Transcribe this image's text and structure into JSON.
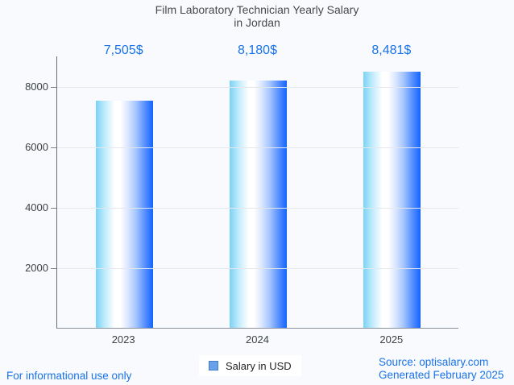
{
  "title": {
    "line1": "Film Laboratory Technician Yearly Salary",
    "line2": "in Jordan"
  },
  "chart_data": {
    "type": "bar",
    "title": "Film Laboratory Technician Yearly Salary in Jordan",
    "categories": [
      "2023",
      "2024",
      "2025"
    ],
    "values": [
      7505,
      8180,
      8481
    ],
    "value_labels": [
      "7,505$",
      "8,180$",
      "8,481$"
    ],
    "series": [
      {
        "name": "Salary in USD",
        "values": [
          7505,
          8180,
          8481
        ]
      }
    ],
    "xlabel": "",
    "ylabel": "",
    "y_ticks": [
      2000,
      4000,
      6000,
      8000
    ],
    "ylim": [
      0,
      9000
    ],
    "grid": true,
    "legend_position": "bottom",
    "bar_gradient": [
      "#79d2f7",
      "#ffffff",
      "#1264ff"
    ]
  },
  "legend": {
    "label": "Salary in USD",
    "marker_color": "#68a1e7",
    "marker_border": "#4080cd"
  },
  "footer": {
    "left": "For informational use only",
    "source": "Source: optisalary.com",
    "generated": "Generated February 2025"
  },
  "colors": {
    "accent_blue": "#1a73e8",
    "title_gray": "#47494d",
    "background": "#f8fafd",
    "gridline": "#e4e8ed"
  }
}
